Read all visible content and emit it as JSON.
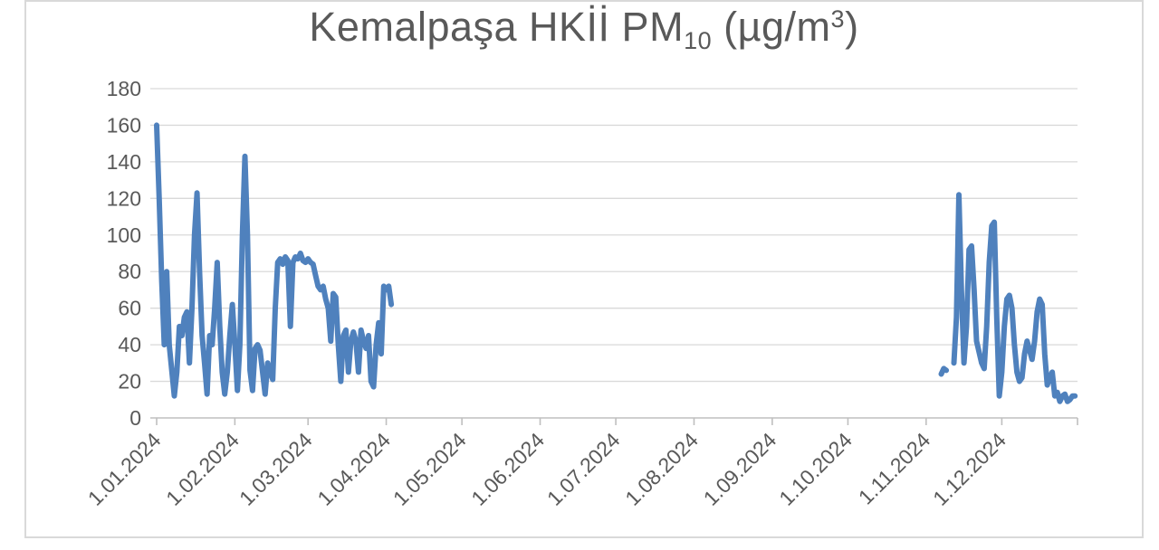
{
  "chart_data": {
    "type": "line",
    "title": {
      "prefix": "Kemalpaşa HKİİ PM",
      "sub": "10",
      "mid": " (µg/m",
      "sup": "3",
      "suffix": ")"
    },
    "colors": {
      "line": "#4f81bd",
      "gridline": "#d9d9d9",
      "axis": "#bfbfbf",
      "label_text": "#595959",
      "frame_border": "#d9d9d9"
    },
    "y_axis": {
      "min": 0,
      "max": 180,
      "ticks": [
        0,
        20,
        40,
        60,
        80,
        100,
        120,
        140,
        160,
        180
      ]
    },
    "x_axis": {
      "tick_labels": [
        "1.01.2024",
        "1.02.2024",
        "1.03.2024",
        "1.04.2024",
        "1.05.2024",
        "1.06.2024",
        "1.07.2024",
        "1.08.2024",
        "1.09.2024",
        "1.10.2024",
        "1.11.2024",
        "1.12.2024"
      ],
      "label_rotation_deg": 45,
      "span_days": 365,
      "grid": "horizontal-only",
      "legend": "none"
    },
    "series": [
      {
        "name": "PM10",
        "color": "#4f81bd",
        "segments": [
          {
            "start_date": "1.01.2024",
            "values": [
              160,
              120,
              75,
              40,
              80,
              40,
              26,
              12,
              25,
              50,
              45,
              55,
              58,
              30,
              60,
              100,
              123,
              80,
              45,
              30,
              13,
              45,
              40,
              60,
              85,
              50,
              25,
              13,
              25,
              45,
              62,
              40,
              15,
              40,
              100,
              143,
              100,
              26,
              15,
              38,
              40,
              37,
              25,
              13,
              30,
              25,
              21,
              60,
              85,
              87,
              84,
              88,
              86,
              50,
              85,
              88,
              87,
              90,
              86,
              85,
              87,
              85,
              84,
              78,
              72,
              70,
              72,
              65,
              60,
              42,
              68,
              66,
              40,
              20,
              45,
              48,
              25,
              42,
              47,
              42,
              25,
              48,
              42,
              38,
              45,
              20,
              17,
              40,
              52,
              35,
              72,
              70,
              72,
              62
            ]
          },
          {
            "start_date": "7.11.2024",
            "values": [
              24,
              27,
              26
            ]
          },
          {
            "start_date": "12.11.2024",
            "values": [
              30,
              55,
              122,
              70,
              30,
              50,
              92,
              94,
              70,
              42,
              36,
              30,
              27,
              50,
              85,
              105,
              107,
              55,
              12,
              25,
              50,
              65,
              67,
              60,
              40,
              25,
              20,
              22,
              35,
              42,
              37,
              32,
              42,
              58,
              65,
              62,
              35,
              18,
              22,
              25,
              12,
              14,
              9,
              12,
              13,
              9,
              10,
              12,
              12
            ]
          }
        ]
      }
    ]
  }
}
